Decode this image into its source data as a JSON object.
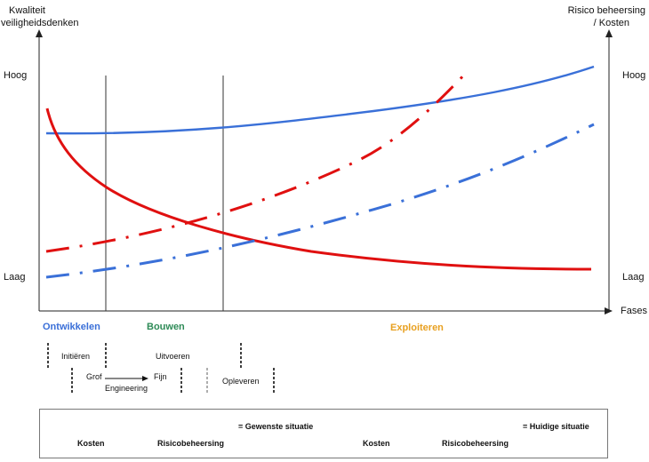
{
  "axes": {
    "left_title_line1": "Kwaliteit",
    "left_title_line2": "veiligheidsdenken",
    "right_title_line1": "Risico beheersing",
    "right_title_line2": "/ Kosten",
    "left_high": "Hoog",
    "left_low": "Laag",
    "right_high": "Hoog",
    "right_low": "Laag",
    "x_title": "Fases"
  },
  "phases": {
    "ontwikkelen": "Ontwikkelen",
    "bouwen": "Bouwen",
    "exploiteren": "Exploiteren",
    "colors": {
      "ontwikkelen": "#3a6fd8",
      "bouwen": "#2e8b57",
      "exploiteren": "#e8a020"
    }
  },
  "subphases": {
    "initieren": "Initiëren",
    "uitvoeren": "Uitvoeren",
    "grof": "Grof",
    "engineering": "Engineering",
    "fijn": "Fijn",
    "opleveren": "Opleveren"
  },
  "legend": {
    "kosten_1": "Kosten",
    "risico_1": "Risicobeheersing",
    "gewenst": "= Gewenste situatie",
    "kosten_2": "Kosten",
    "risico_2": "Risicobeheersing",
    "huidig": "= Huidige situatie",
    "colors": {
      "kosten": "#e01010",
      "risico_gewenst": "#1020c0",
      "risico_huidig": "#2050d0"
    }
  },
  "curves": {
    "colors": {
      "kosten": "#e01010",
      "risico": "#3a70d8"
    }
  }
}
